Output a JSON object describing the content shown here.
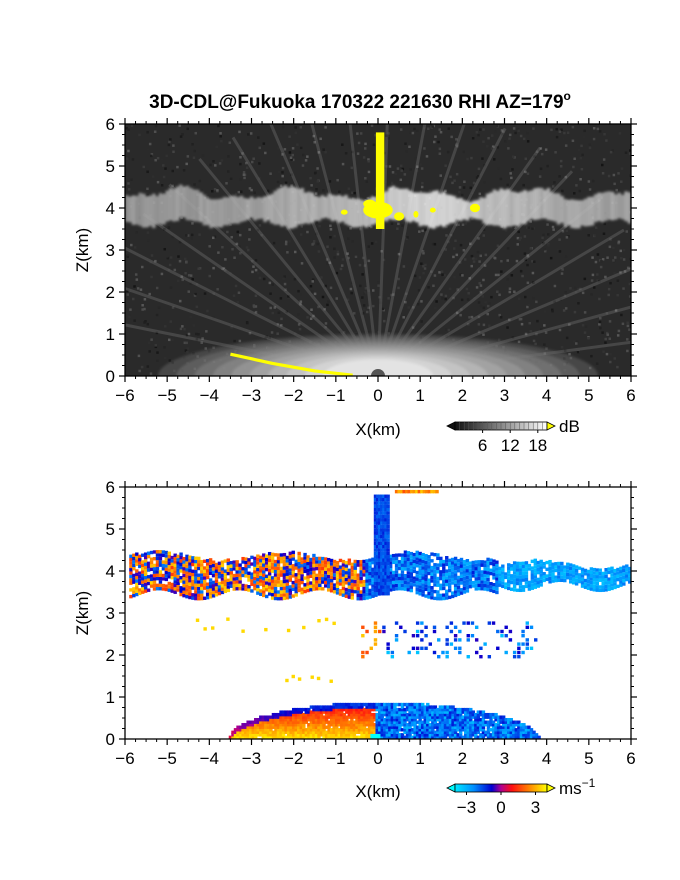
{
  "title": "3D-CDL@Fukuoka 170322 221630 RHI AZ=179",
  "title_superscript": "o",
  "colors": {
    "background": "#ffffff",
    "axis": "#000000",
    "highlight": "#ffff00"
  },
  "chart_data": [
    {
      "type": "heatmap",
      "name": "backscatter-panel",
      "xlabel": "X(km)",
      "ylabel": "Z(km)",
      "xlim": [
        -6,
        6
      ],
      "ylim": [
        0,
        6
      ],
      "xticks": [
        -6,
        -5,
        -4,
        -3,
        -2,
        -1,
        0,
        1,
        2,
        3,
        4,
        5,
        6
      ],
      "yticks": [
        0,
        1,
        2,
        3,
        4,
        5,
        6
      ],
      "colorbar": {
        "unit": "dB",
        "ticks": [
          6,
          12,
          18
        ],
        "range": [
          0,
          20
        ],
        "colormap": [
          "#111111",
          "#ffffff"
        ],
        "overflow_color": "#ffff00"
      },
      "features": {
        "cloud_layer": {
          "x": [
            -6,
            6
          ],
          "z_base": 3.6,
          "z_top": 4.3
        },
        "precip_column": {
          "x": [
            -0.05,
            0.15
          ],
          "z": [
            3.5,
            5.8
          ]
        },
        "ground_arc_yellow": [
          [
            -3.5,
            0.52
          ],
          [
            -2.5,
            0.3
          ],
          [
            -1.5,
            0.12
          ],
          [
            -0.6,
            0.02
          ]
        ]
      }
    },
    {
      "type": "heatmap",
      "name": "doppler-velocity-panel",
      "xlabel": "X(km)",
      "ylabel": "Z(km)",
      "xlim": [
        -6,
        6
      ],
      "ylim": [
        0,
        6
      ],
      "xticks": [
        -6,
        -5,
        -4,
        -3,
        -2,
        -1,
        0,
        1,
        2,
        3,
        4,
        5,
        6
      ],
      "yticks": [
        0,
        1,
        2,
        3,
        4,
        5,
        6
      ],
      "colorbar": {
        "unit": "ms",
        "unit_exponent": "−1",
        "ticks": [
          -3,
          0,
          3
        ],
        "tick_labels": [
          "−3",
          "0",
          "3"
        ],
        "range": [
          -4,
          4
        ],
        "colormap": [
          "#00e8ff",
          "#0090ff",
          "#0000d0",
          "#b00090",
          "#ff1010",
          "#ff8000",
          "#ffff00"
        ],
        "overflow_color": "#ffff00",
        "underflow_color": "#00ffff"
      },
      "features": {
        "cloud_layer": {
          "x": [
            -6,
            6
          ],
          "z_base": 3.5,
          "z_top": 4.4
        },
        "precip_column": {
          "x": [
            -0.1,
            0.2
          ],
          "z": [
            3.5,
            5.9
          ]
        },
        "boundary_layer": {
          "x": [
            -3.6,
            3.8
          ],
          "z_top": 0.95
        }
      }
    }
  ]
}
